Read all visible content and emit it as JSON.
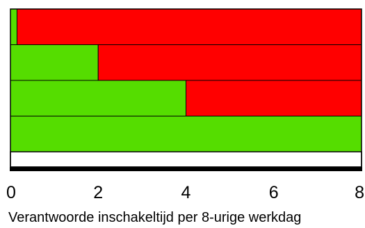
{
  "chart_data": {
    "type": "bar",
    "orientation": "horizontal",
    "stacked": true,
    "xlabel": "Verantwoorde inschakeltijd per 8-urige werkdag",
    "xlim": [
      0,
      8
    ],
    "ticks": [
      "0",
      "2",
      "4",
      "6",
      "8"
    ],
    "tick_values": [
      0,
      2,
      4,
      6,
      8
    ],
    "grid": false,
    "legend": "none",
    "total": 8,
    "rows": [
      {
        "green": 0.15,
        "red": 7.85
      },
      {
        "green": 2,
        "red": 6
      },
      {
        "green": 4,
        "red": 4
      },
      {
        "green": 8,
        "red": 0
      }
    ],
    "colors": {
      "green": "#55dd00",
      "red": "#ff0000",
      "outline": "#000000",
      "background": "#ffffff"
    }
  }
}
